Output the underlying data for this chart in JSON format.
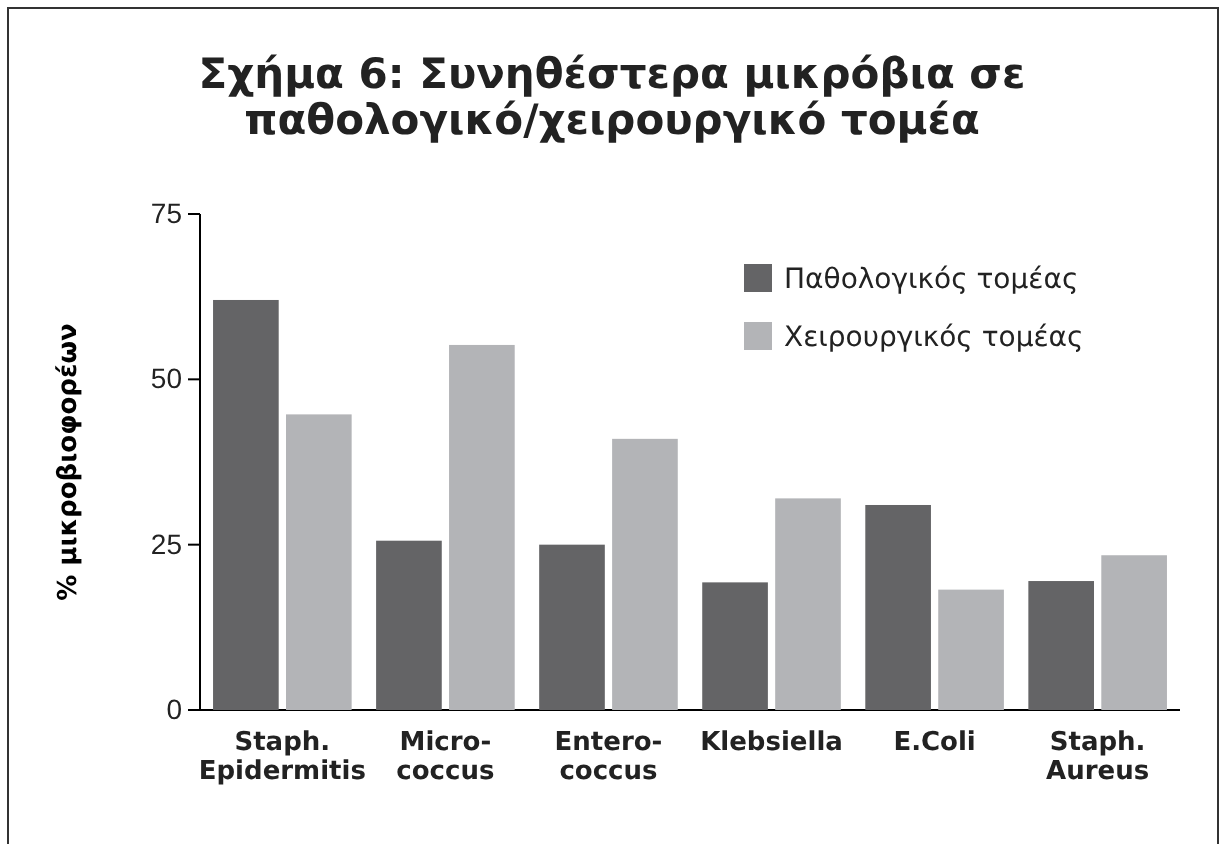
{
  "chart_data": {
    "type": "bar",
    "title": "Σχήμα 6:  Συνηθέστερα μικρόβια σε\nπαθολογικό/χειρουργικό τομέα",
    "ylabel": "% μικροβιοφορέων",
    "categories": [
      "Staph.\nEpidermitis",
      "Micro-\ncoccus",
      "Entero-\ncoccus",
      "Klebsiella",
      "E.Coli",
      "Staph.\nAureus"
    ],
    "series": [
      {
        "name": "Παθολογικός τομέας",
        "color": "#646466",
        "values": [
          62,
          25.6,
          25,
          19.3,
          31,
          19.5
        ]
      },
      {
        "name": "Χειρουργικός τομέας",
        "color": "#b3b4b7",
        "values": [
          44.7,
          55.2,
          41,
          32,
          18.2,
          23.4
        ]
      }
    ],
    "ylim": [
      0,
      75
    ],
    "yticks": [
      0,
      25,
      50,
      75
    ],
    "grid": false,
    "legend": "top right"
  }
}
